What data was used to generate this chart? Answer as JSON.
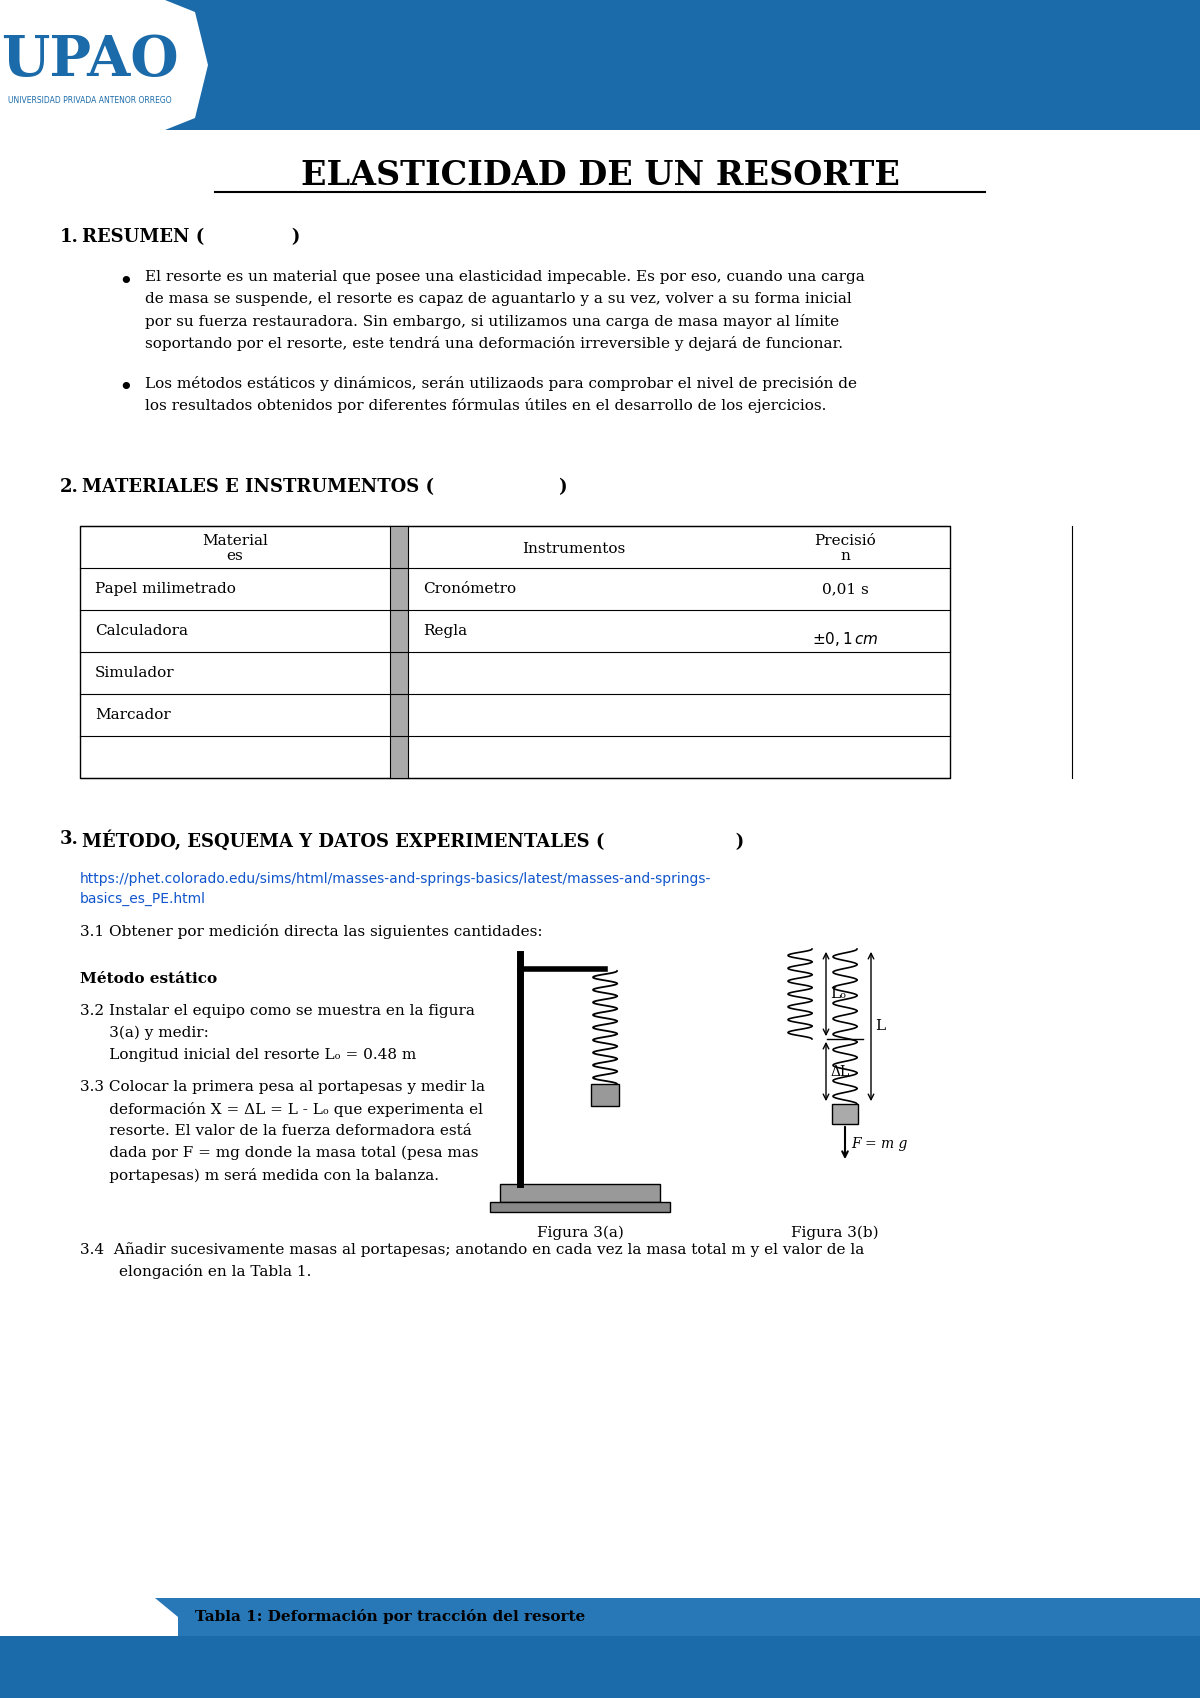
{
  "title": "ELASTICIDAD DE UN RESORTE",
  "header_blue": "#1B6BAA",
  "upao_text": "UPAO",
  "upao_subtitle": "UNIVERSIDAD PRIVADA ANTENOR ORREGO",
  "bullet1_lines": [
    "El resorte es un material que posee una elasticidad impecable. Es por eso, cuando una carga",
    "de masa se suspende, el resorte es capaz de aguantarlo y a su vez, volver a su forma inicial",
    "por su fuerza restauradora. Sin embargo, si utilizamos una carga de masa mayor al límite",
    "soportando por el resorte, este tendrá una deformación irreversible y dejará de funcionar."
  ],
  "bullet2_lines": [
    "Los métodos estáticos y dinámicos, serán utilizaods para comprobar el nivel de precisión de",
    "los resultados obtenidos por diferentes fórmulas útiles en el desarrollo de los ejercicios."
  ],
  "table_rows": [
    [
      "Papel milimetrado",
      "Cronómetro",
      "0,01 s"
    ],
    [
      "Calculadora",
      "Regla",
      "± 0,1 cm"
    ],
    [
      "Simulador",
      "",
      ""
    ],
    [
      "Marcador",
      "",
      ""
    ],
    [
      "",
      "",
      ""
    ]
  ],
  "link_text_line1": "https://phet.colorado.edu/sims/html/masses-and-springs-basics/latest/masses-and-springs-",
  "link_text_line2": "basics_es_PE.html",
  "link_color": "#1155CC",
  "text_31": "3.1 Obtener por medición directa las siguientes cantidades:",
  "metodo_estatico": "Método estático",
  "t32_lines": [
    "3.2 Instalar el equipo como se muestra en la figura",
    "      3(a) y medir:",
    "      Longitud inicial del resorte Lₒ = 0.48 m"
  ],
  "t33_lines": [
    "3.3 Colocar la primera pesa al portapesas y medir la",
    "      deformación X = ΔL = L - Lₒ que experimenta el",
    "      resorte. El valor de la fuerza deformadora está",
    "      dada por F = mg donde la masa total (pesa mas",
    "      portapesas) m será medida con la balanza."
  ],
  "figura3a": "Figura 3(a)",
  "figura3b": "Figura 3(b)",
  "t34_lines": [
    "3.4  Añadir sucesivamente masas al portapesas; anotando en cada vez la masa total m y el valor de la",
    "        elongación en la Tabla 1."
  ],
  "tabla1_label": "Tabla 1: Deformación por tracción del resorte"
}
